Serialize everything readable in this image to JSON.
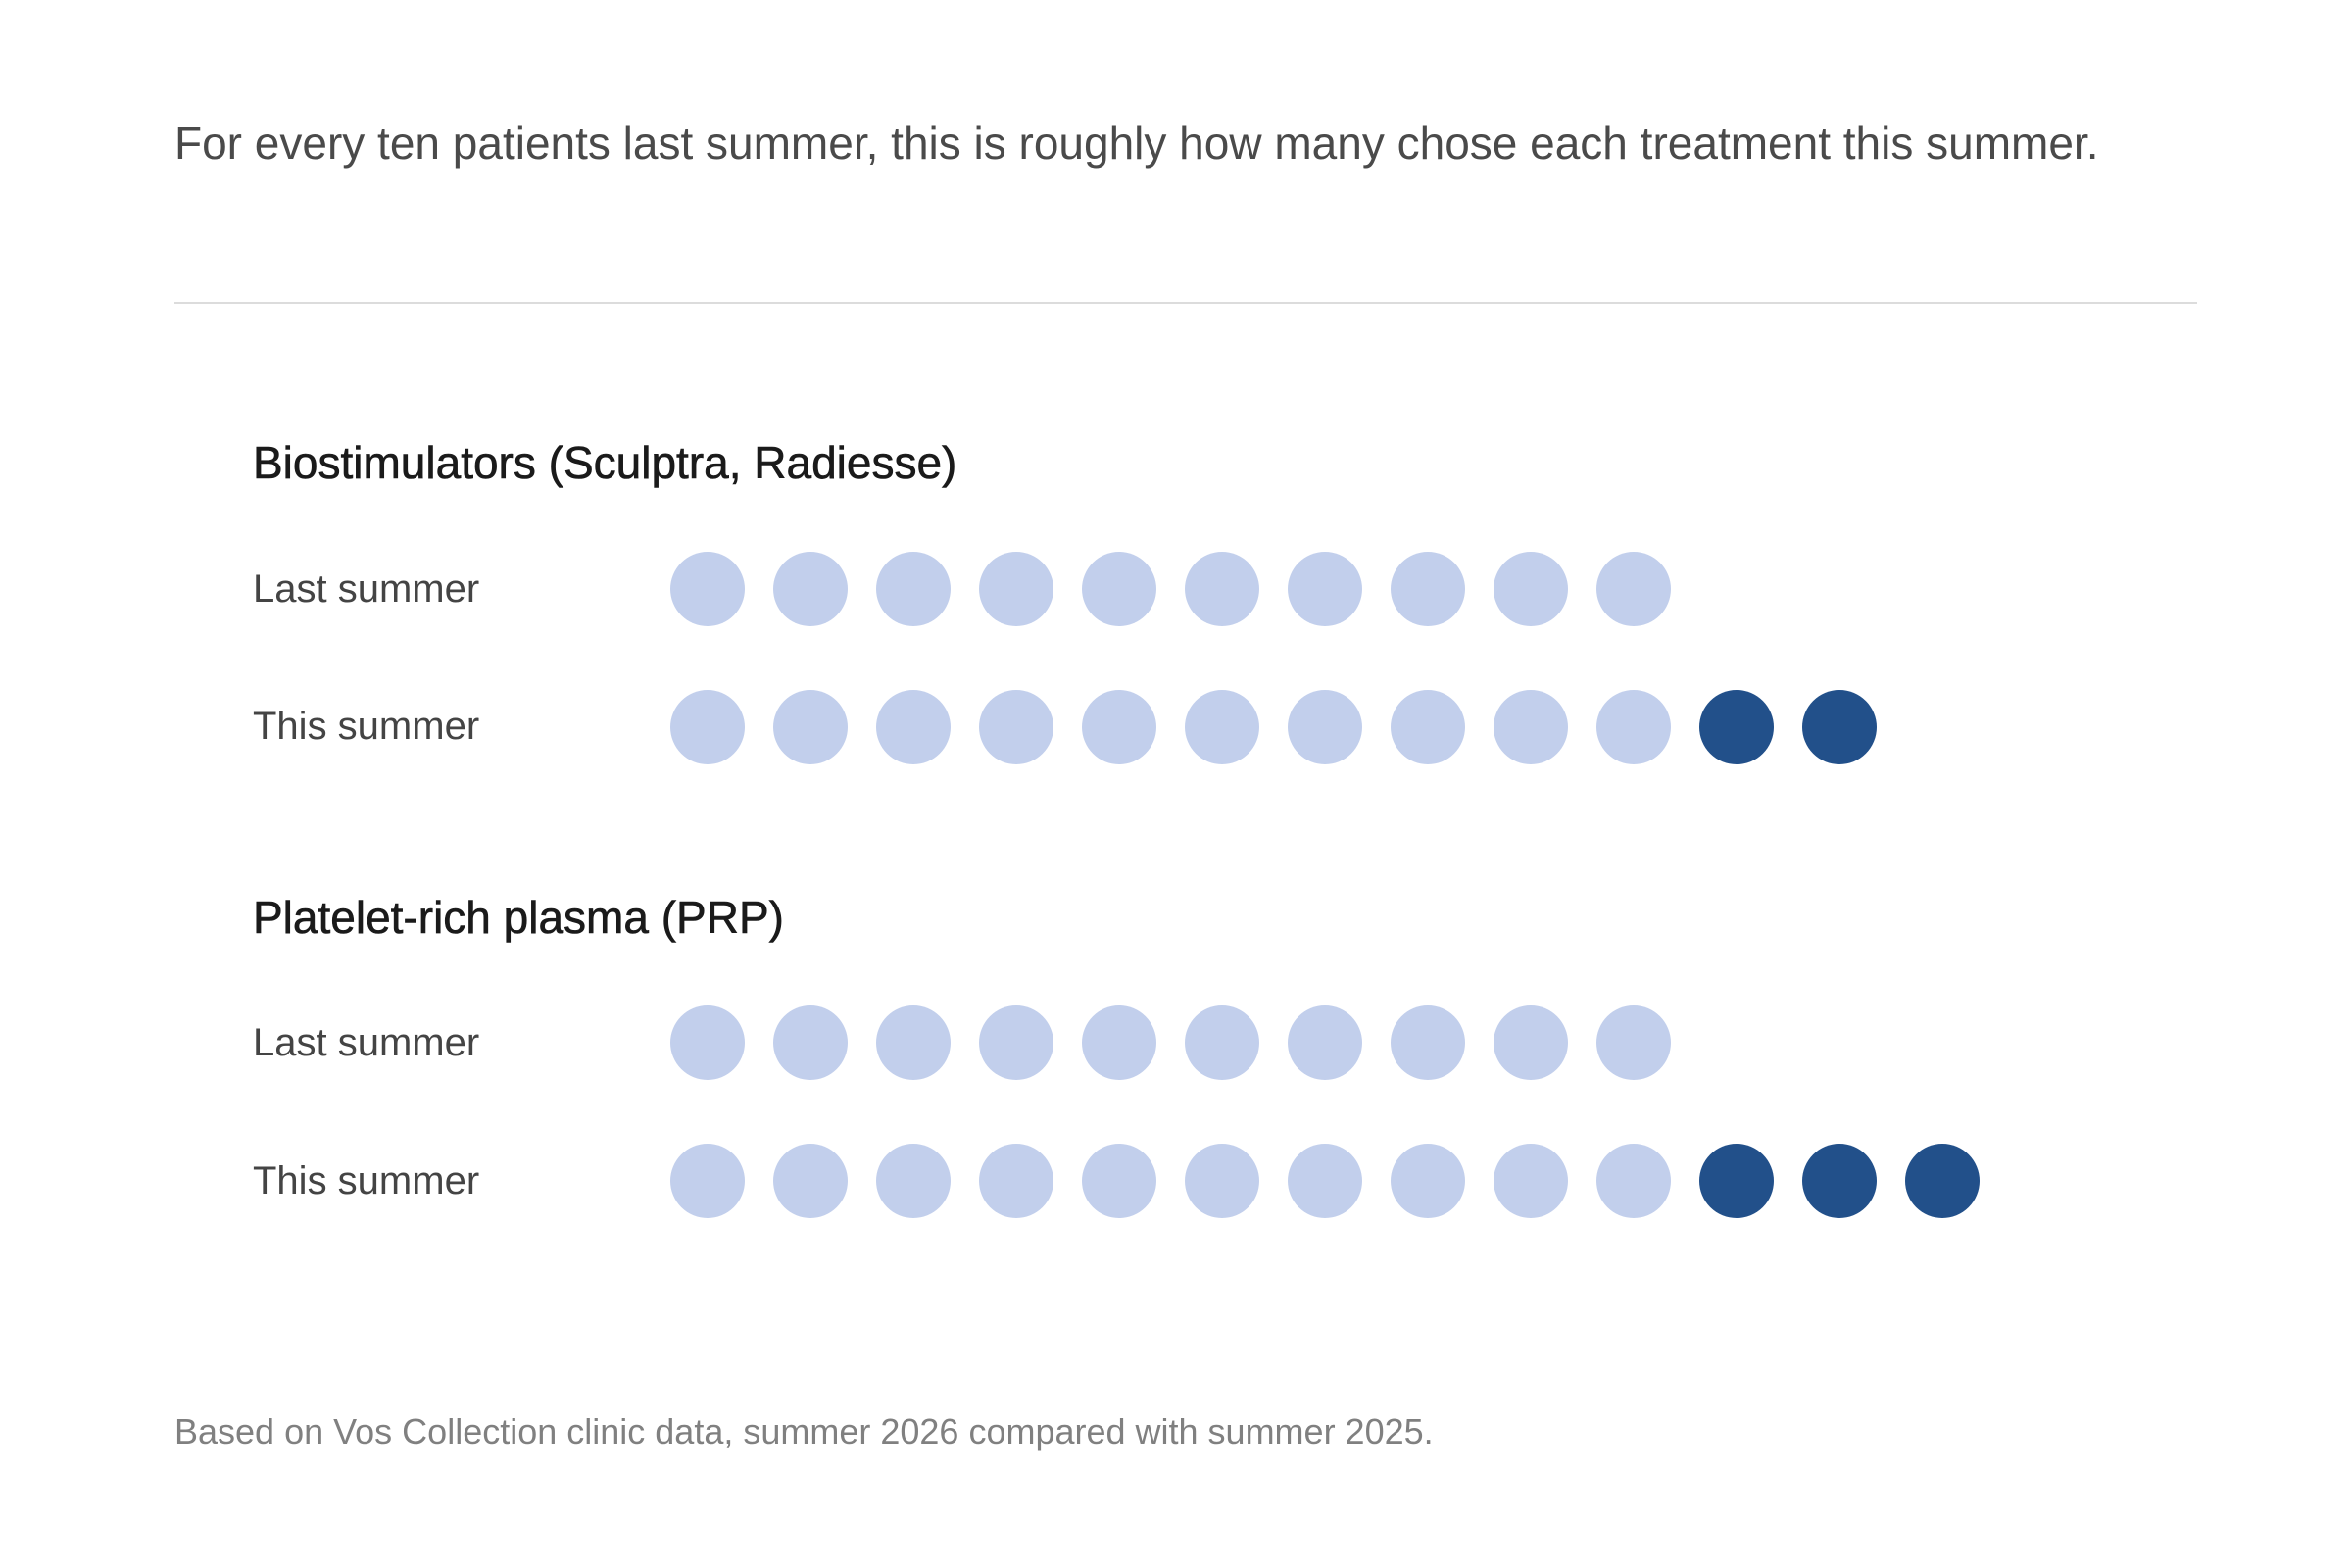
{
  "intro_text": "For every ten patients last summer, this is roughly how many chose each treatment this summer.",
  "footnote": "Based on Vos Collection clinic data, summer 2026 compared with summer 2025.",
  "colors": {
    "baseline_dot": "#c2cfec",
    "increase_dot": "#22508a"
  },
  "chart_data": {
    "type": "dot-matrix",
    "title": "",
    "baseline_per_group": 10,
    "groups": [
      {
        "name": "Biostimulators (Sculptra, Radiesse)",
        "rows": [
          {
            "label": "Last summer",
            "value": 10
          },
          {
            "label": "This summer",
            "value": 12
          }
        ]
      },
      {
        "name": "Platelet-rich plasma (PRP)",
        "rows": [
          {
            "label": "Last summer",
            "value": 10
          },
          {
            "label": "This summer",
            "value": 13
          }
        ]
      }
    ]
  }
}
